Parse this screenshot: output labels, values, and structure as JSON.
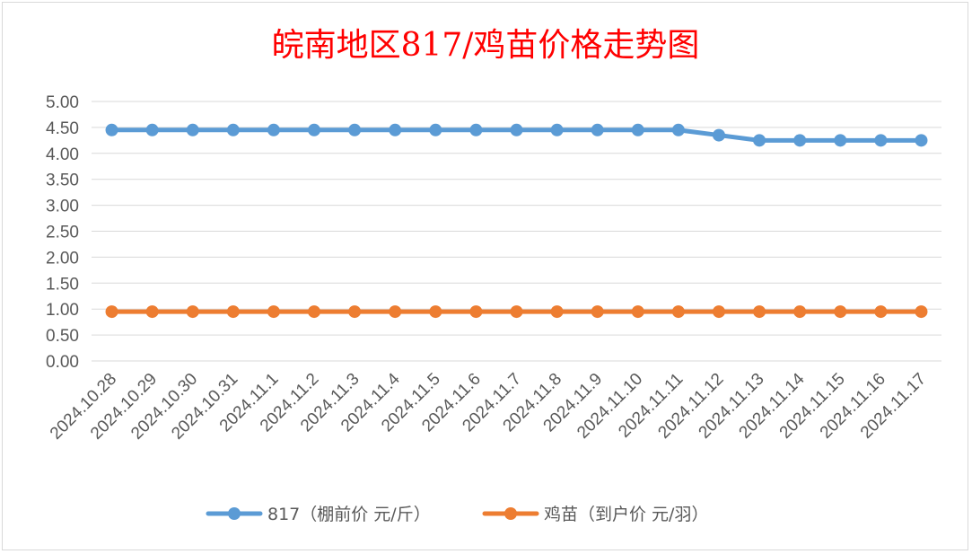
{
  "chart_data": {
    "type": "line",
    "title": "皖南地区817/鸡苗价格走势图",
    "xlabel": "",
    "ylabel": "",
    "categories": [
      "2024.10.28",
      "2024.10.29",
      "2024.10.30",
      "2024.10.31",
      "2024.11.1",
      "2024.11.2",
      "2024.11.3",
      "2024.11.4",
      "2024.11.5",
      "2024.11.6",
      "2024.11.7",
      "2024.11.8",
      "2024.11.9",
      "2024.11.10",
      "2024.11.11",
      "2024.11.12",
      "2024.11.13",
      "2024.11.14",
      "2024.11.15",
      "2024.11.16",
      "2024.11.17"
    ],
    "ylim": [
      0,
      5
    ],
    "yticks": [
      "0.00",
      "0.50",
      "1.00",
      "1.50",
      "2.00",
      "2.50",
      "3.00",
      "3.50",
      "4.00",
      "4.50",
      "5.00"
    ],
    "grid": true,
    "legend_position": "bottom",
    "series": [
      {
        "name": "817（棚前价 元/斤）",
        "color": "#5b9bd5",
        "values": [
          4.45,
          4.45,
          4.45,
          4.45,
          4.45,
          4.45,
          4.45,
          4.45,
          4.45,
          4.45,
          4.45,
          4.45,
          4.45,
          4.45,
          4.45,
          4.35,
          4.25,
          4.25,
          4.25,
          4.25,
          4.25
        ]
      },
      {
        "name": "鸡苗（到户价 元/羽）",
        "color": "#ed7d31",
        "values": [
          0.95,
          0.95,
          0.95,
          0.95,
          0.95,
          0.95,
          0.95,
          0.95,
          0.95,
          0.95,
          0.95,
          0.95,
          0.95,
          0.95,
          0.95,
          0.95,
          0.95,
          0.95,
          0.95,
          0.95,
          0.95
        ]
      }
    ]
  }
}
